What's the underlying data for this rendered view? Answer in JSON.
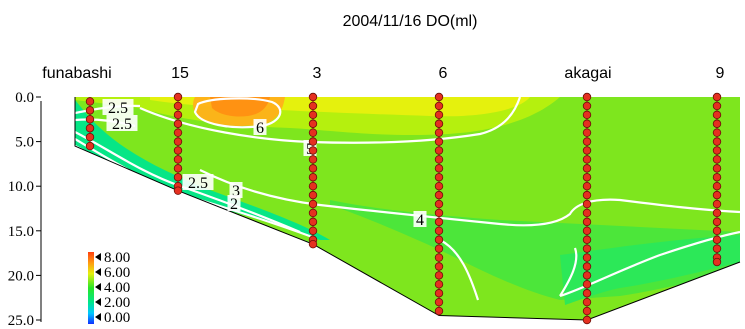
{
  "chart_data": {
    "type": "heatmap",
    "title": "2004/11/16 DO(ml)",
    "stations": [
      {
        "label": "funabashi",
        "depth_max": 5.5,
        "samples": [
          0.5,
          1.5,
          2.5,
          3.5,
          4.5,
          5.5
        ]
      },
      {
        "label": "15",
        "depth_max": 10.5,
        "samples": [
          0,
          1,
          2,
          3,
          4,
          5,
          6,
          7,
          8,
          9,
          10,
          10.5
        ]
      },
      {
        "label": "3",
        "depth_max": 16.5,
        "samples": [
          0,
          1,
          2,
          3,
          4,
          5,
          6,
          7,
          8,
          9,
          10,
          11,
          12,
          13,
          14,
          15,
          16,
          16.5
        ]
      },
      {
        "label": "6",
        "depth_max": 24.5,
        "samples": [
          0,
          1,
          2,
          3,
          4,
          5,
          6,
          7,
          8,
          9,
          10,
          11,
          12,
          13,
          14,
          15,
          16,
          17,
          18,
          19,
          20,
          21,
          22,
          23,
          24
        ]
      },
      {
        "label": "akagai",
        "depth_max": 25.0,
        "samples": [
          0,
          1,
          2,
          3,
          4,
          5,
          6,
          7,
          8,
          9,
          10,
          11,
          12,
          13,
          14,
          15,
          16,
          17,
          18,
          19,
          20,
          21,
          22,
          23,
          24,
          25
        ]
      },
      {
        "label": "9",
        "depth_max": 18.5,
        "samples": [
          0,
          1,
          2,
          3,
          4,
          5,
          6,
          7,
          8,
          9,
          10,
          11,
          12,
          13,
          14,
          15,
          16,
          17,
          18,
          18.5
        ]
      }
    ],
    "y_ticks": [
      "0.0",
      "5.0",
      "10.0",
      "15.0",
      "20.0",
      "25.0"
    ],
    "ylim": [
      0,
      25
    ],
    "y_inverted": true,
    "legend": {
      "position": "bottom-left",
      "labels": [
        "8.00",
        "6.00",
        "4.00",
        "2.00",
        "0.00"
      ],
      "range": [
        0,
        8
      ]
    },
    "contour_labels": [
      "2.5",
      "2.5",
      "6",
      "5",
      "2.5",
      "3",
      "2",
      "4"
    ],
    "colors": {
      "dot": "#e53020",
      "contour": "#ffffff",
      "high": "#ff8c1a",
      "mid": "#3ce63c",
      "low": "#00c8ff"
    }
  }
}
